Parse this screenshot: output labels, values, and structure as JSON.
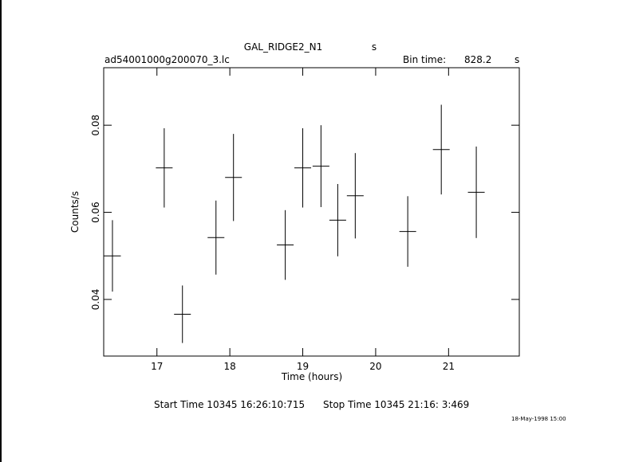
{
  "chart_data": {
    "type": "errorbar",
    "title": "GAL_RIDGE2_N1",
    "title_unit": "s",
    "file_label": "ad54001000g200070_3.lc",
    "bin_time_label": "Bin time:",
    "bin_time": "828.2",
    "bin_time_unit": "s",
    "xlabel": "Time (hours)",
    "ylabel": "Counts/s",
    "start_time": "Start Time 10345 16:26:10:715",
    "stop_time": "Stop Time 10345 21:16: 3:469",
    "date_stamp": "18-May-1998 15:00",
    "x": [
      16.39,
      17.1,
      17.35,
      17.81,
      18.05,
      18.76,
      19.0,
      19.25,
      19.48,
      19.72,
      20.44,
      20.9,
      21.38
    ],
    "values": [
      0.05,
      0.0702,
      0.0366,
      0.0542,
      0.068,
      0.0525,
      0.0702,
      0.0706,
      0.0582,
      0.0638,
      0.0556,
      0.0744,
      0.0646
    ],
    "errors": [
      0.0082,
      0.0091,
      0.0066,
      0.0085,
      0.01,
      0.008,
      0.0091,
      0.0094,
      0.0083,
      0.0098,
      0.0081,
      0.0103,
      0.0105
    ],
    "xerr": 0.115,
    "color": "#000000",
    "xlim": [
      16.27,
      21.97
    ],
    "ylim": [
      0.027,
      0.0932
    ],
    "xticks": [
      17,
      18,
      19,
      20,
      21
    ],
    "yticks": [
      0.04,
      0.06,
      0.08
    ]
  }
}
